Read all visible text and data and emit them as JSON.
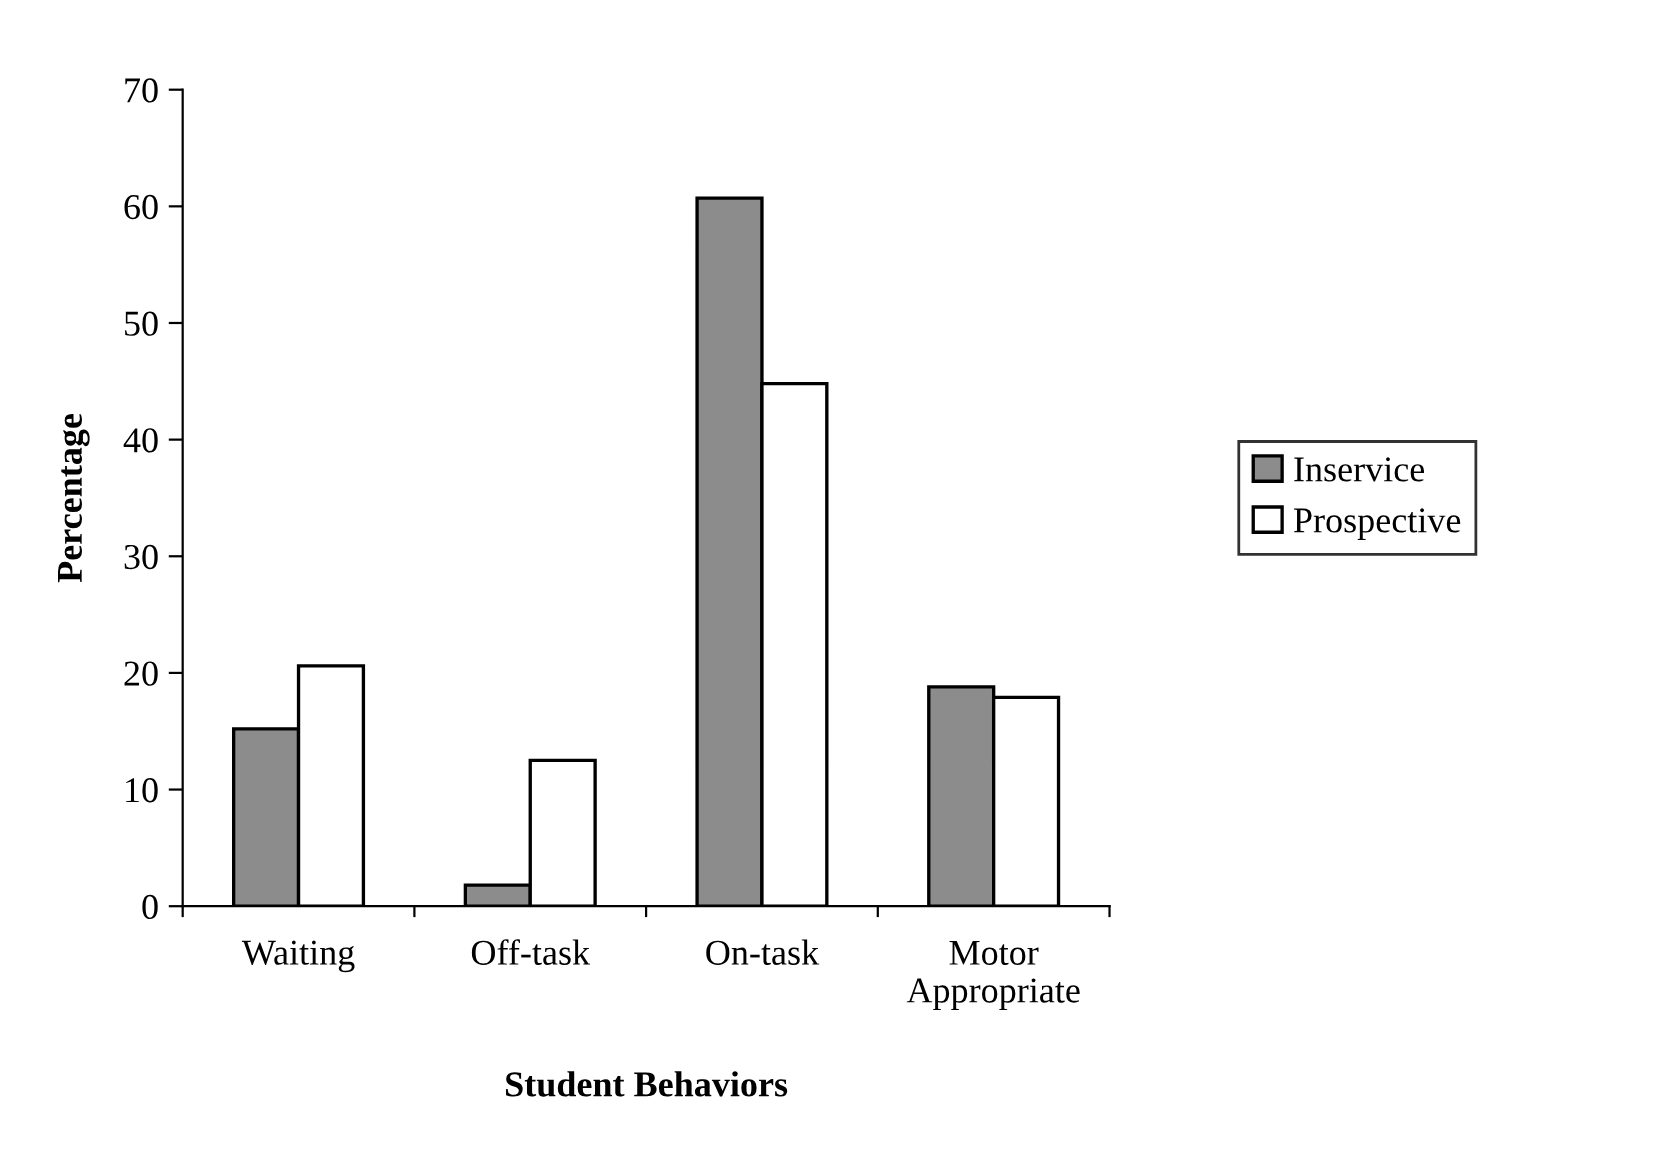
{
  "chart_data": {
    "type": "bar",
    "xlabel": "Student Behaviors",
    "ylabel": "Percentage",
    "categories": [
      "Waiting",
      "Off-task",
      "On-task",
      "Motor\nAppropriate"
    ],
    "series": [
      {
        "name": "Inservice",
        "color": "#8c8c8c",
        "values": [
          15.2,
          1.8,
          60.7,
          18.8
        ]
      },
      {
        "name": "Prospective",
        "color": "#ffffff",
        "values": [
          20.6,
          12.5,
          44.8,
          17.9
        ]
      }
    ],
    "ylim": [
      0,
      70
    ],
    "yticks": [
      0,
      10,
      20,
      30,
      40,
      50,
      60,
      70
    ],
    "grid": false,
    "legend": "right"
  }
}
